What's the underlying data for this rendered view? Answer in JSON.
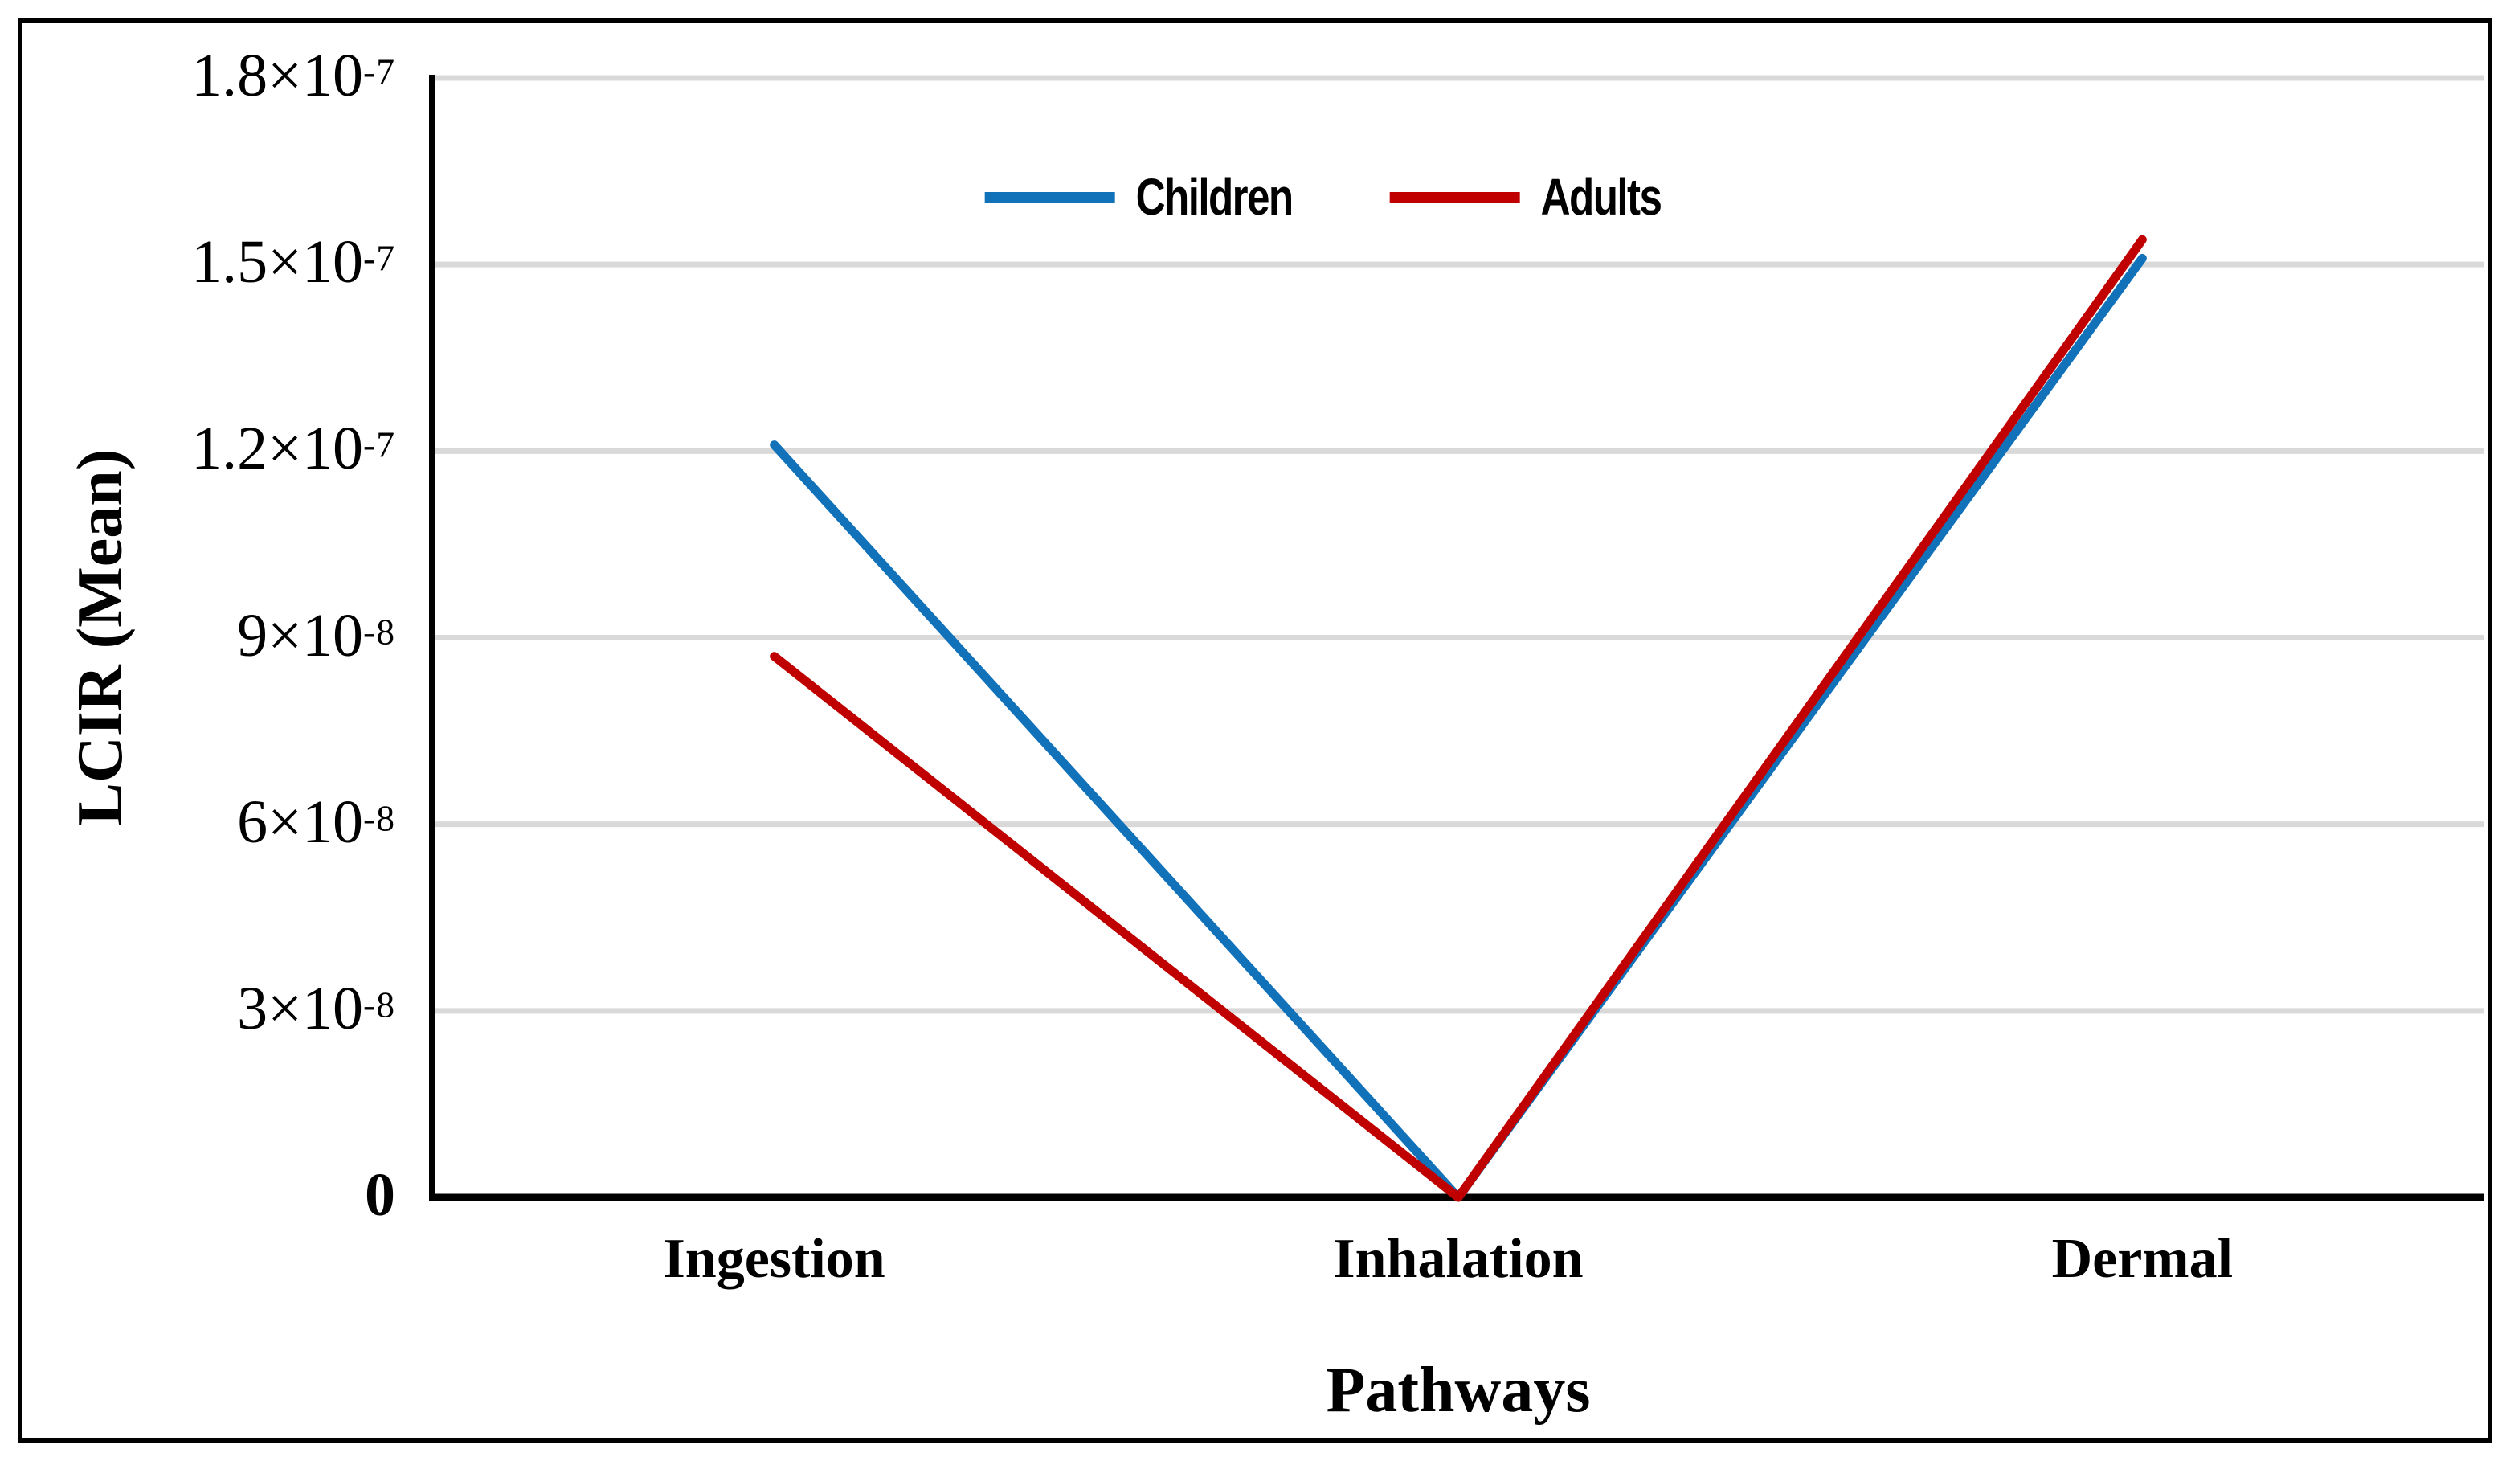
{
  "figure": {
    "background": "#ffffff",
    "frame_color": "#000000"
  },
  "chart_data": {
    "type": "line",
    "title": "",
    "xlabel": "Pathways",
    "ylabel": "LCIR (Mean)",
    "categories": [
      "Ingestion",
      "Inhalation",
      "Dermal"
    ],
    "series": [
      {
        "name": "Children",
        "color": "#1172BA",
        "values": [
          1.21e-07,
          0,
          1.51e-07
        ]
      },
      {
        "name": "Adults",
        "color": "#C00000",
        "values": [
          8.7e-08,
          0,
          1.54e-07
        ]
      }
    ],
    "ylim": [
      0,
      1.8e-07
    ],
    "ytick_step": 3e-08,
    "yticks": [
      {
        "value": 0,
        "base": "0",
        "exp": "",
        "bold": true
      },
      {
        "value": 3e-08,
        "base": "3×10",
        "exp": "-8",
        "bold": false
      },
      {
        "value": 6e-08,
        "base": "6×10",
        "exp": "-8",
        "bold": false
      },
      {
        "value": 9e-08,
        "base": "9×10",
        "exp": "-8",
        "bold": false
      },
      {
        "value": 1.2e-07,
        "base": "1.2×10",
        "exp": "-7",
        "bold": false
      },
      {
        "value": 1.5e-07,
        "base": "1.5×10",
        "exp": "-7",
        "bold": false
      },
      {
        "value": 1.8e-07,
        "base": "1.8×10",
        "exp": "-7",
        "bold": false
      }
    ],
    "grid": true,
    "gridline_color": "#D9D9D9",
    "axis_color": "#000000",
    "legend_position": "top-center"
  }
}
